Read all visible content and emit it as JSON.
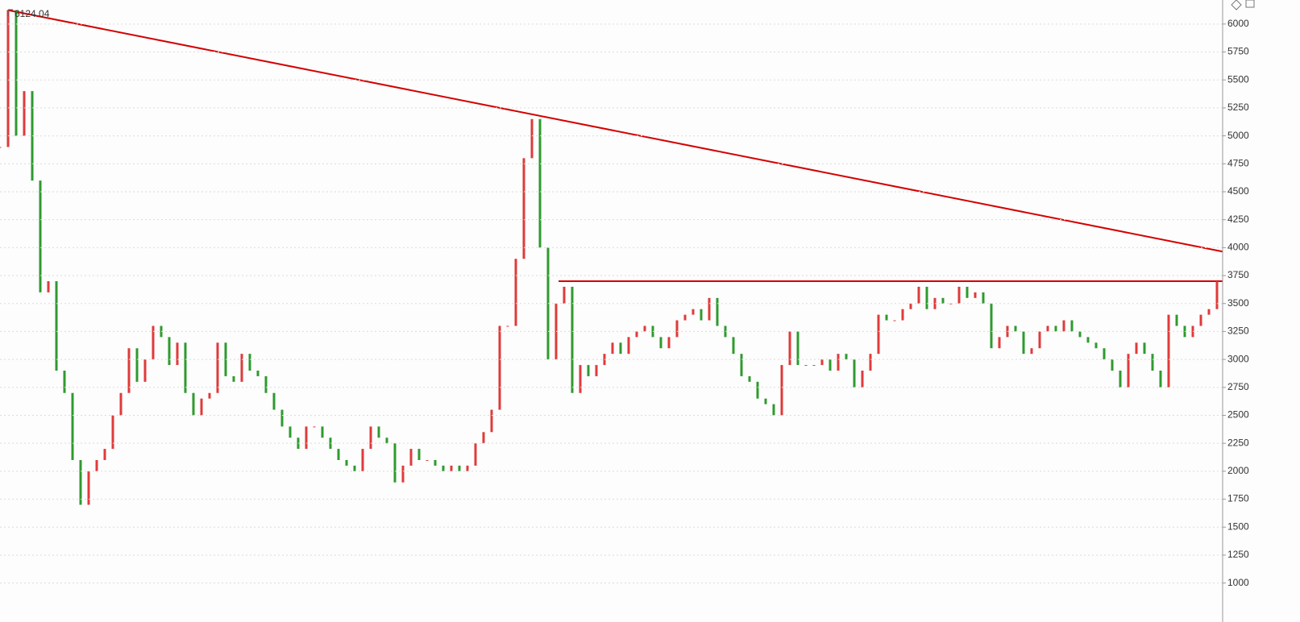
{
  "chart_data": {
    "type": "candle-line",
    "annotation": "6124.04",
    "up_color": "#e03a3a",
    "down_color": "#2e9a2e",
    "ylim": [
      810,
      6215
    ],
    "yticks": [
      1000,
      1250,
      1500,
      1750,
      2000,
      2250,
      2500,
      2750,
      3000,
      3250,
      3500,
      3750,
      4000,
      4250,
      4500,
      4750,
      5000,
      5250,
      5500,
      5750,
      6000
    ],
    "grid": true,
    "values": [
      4900,
      6124.04,
      5000,
      5400,
      4600,
      3600,
      3700,
      2900,
      2700,
      2100,
      1700,
      2000,
      2100,
      2200,
      2500,
      2700,
      3100,
      2800,
      3000,
      3300,
      3200,
      2950,
      3150,
      2700,
      2500,
      2650,
      2700,
      3150,
      2850,
      2800,
      3050,
      2900,
      2850,
      2700,
      2550,
      2400,
      2300,
      2200,
      2400,
      2400,
      2300,
      2200,
      2100,
      2050,
      2000,
      2200,
      2400,
      2300,
      2250,
      1900,
      2050,
      2200,
      2100,
      2100,
      2050,
      2000,
      2050,
      2000,
      2050,
      2250,
      2350,
      2550,
      3300,
      3300,
      3900,
      4800,
      5150,
      4000,
      3000,
      3500,
      3650,
      2700,
      2950,
      2850,
      2950,
      3050,
      3150,
      3050,
      3200,
      3250,
      3300,
      3200,
      3100,
      3200,
      3350,
      3400,
      3450,
      3350,
      3550,
      3300,
      3200,
      3050,
      2850,
      2800,
      2650,
      2600,
      2500,
      2950,
      3250,
      2950,
      2950,
      2950,
      3000,
      2900,
      3050,
      3000,
      2750,
      2900,
      3050,
      3400,
      3350,
      3350,
      3450,
      3500,
      3650,
      3450,
      3550,
      3500,
      3500,
      3650,
      3550,
      3600,
      3500,
      3100,
      3200,
      3300,
      3250,
      3050,
      3100,
      3250,
      3300,
      3250,
      3350,
      3250,
      3200,
      3150,
      3100,
      3000,
      2900,
      2750,
      3050,
      3150,
      3050,
      2900,
      2750,
      3400,
      3300,
      3200,
      3300,
      3400,
      3450,
      3700
    ],
    "trendlines": [
      {
        "color": "#d40000",
        "from": [
          1,
          6124.04
        ],
        "to": [
          151.7,
          3965
        ]
      },
      {
        "color": "#d40000",
        "from": [
          69.3,
          3700
        ],
        "to": [
          151.7,
          3700
        ]
      }
    ]
  }
}
